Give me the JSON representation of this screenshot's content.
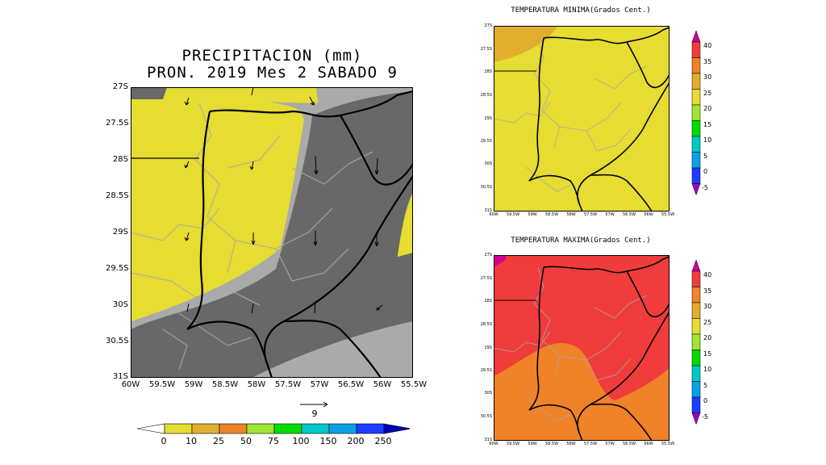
{
  "main_map": {
    "title_line1": "PRECIPITACION (mm)",
    "title_line2": "PRON. 2019 Mes 2 SABADO 9",
    "lat_labels": [
      "27S",
      "27.5S",
      "28S",
      "28.5S",
      "29S",
      "29.5S",
      "30S",
      "30.5S",
      "31S"
    ],
    "lon_labels": [
      "60W",
      "59.5W",
      "59W",
      "58.5W",
      "58W",
      "57.5W",
      "57W",
      "56.5W",
      "56W",
      "55.5W"
    ],
    "vector_ref_label": "9",
    "legend_labels": [
      "0",
      "10",
      "25",
      "50",
      "75",
      "100",
      "150",
      "200",
      "250"
    ],
    "legend_colors": [
      "#ffffff",
      "#e6dc32",
      "#e1af2d",
      "#f08228",
      "#a0e632",
      "#00dc00",
      "#00c8c8",
      "#0aa0e6",
      "#1e3cff",
      "#0000b4"
    ],
    "fill_colors": {
      "yellow": "#e6dc32",
      "dark_gray": "#686868",
      "light_gray": "#aaaaaa"
    }
  },
  "tmin_map": {
    "title": "TEMPERATURA MINIMA(Grados Cent.)",
    "lat_labels": [
      "27S",
      "27.5S",
      "28S",
      "28.5S",
      "29S",
      "29.5S",
      "30S",
      "30.5S",
      "31S"
    ],
    "lon_labels": [
      "60W",
      "59.5W",
      "59W",
      "58.5W",
      "58W",
      "57.5W",
      "57W",
      "56.5W",
      "56W",
      "55.5W"
    ],
    "colorbar_labels": [
      "40",
      "35",
      "30",
      "25",
      "20",
      "15",
      "10",
      "5",
      "0",
      "-5"
    ],
    "colorbar_colors": [
      "#d20096",
      "#f03c3c",
      "#f08228",
      "#e1af2d",
      "#e6dc32",
      "#a0e632",
      "#00dc00",
      "#00c8c8",
      "#0aa0e6",
      "#1e3cff",
      "#a000c8"
    ],
    "fill_colors": {
      "main": "#e6dc32",
      "corner": "#e1af2d"
    }
  },
  "tmax_map": {
    "title": "TEMPERATURA MAXIMA(Grados Cent.)",
    "lat_labels": [
      "27S",
      "27.5S",
      "28S",
      "28.5S",
      "29S",
      "29.5S",
      "30S",
      "30.5S",
      "31S"
    ],
    "lon_labels": [
      "60W",
      "59.5W",
      "59W",
      "58.5W",
      "58W",
      "57.5W",
      "57W",
      "56.5W",
      "56W",
      "55.5W"
    ],
    "colorbar_labels": [
      "40",
      "35",
      "30",
      "25",
      "20",
      "15",
      "10",
      "5",
      "0",
      "-5"
    ],
    "colorbar_colors": [
      "#d20096",
      "#f03c3c",
      "#f08228",
      "#e1af2d",
      "#e6dc32",
      "#a0e632",
      "#00dc00",
      "#00c8c8",
      "#0aa0e6",
      "#1e3cff",
      "#a000c8"
    ],
    "fill_colors": {
      "main": "#f03c3c",
      "lower": "#f08228",
      "corner": "#d20096"
    }
  }
}
